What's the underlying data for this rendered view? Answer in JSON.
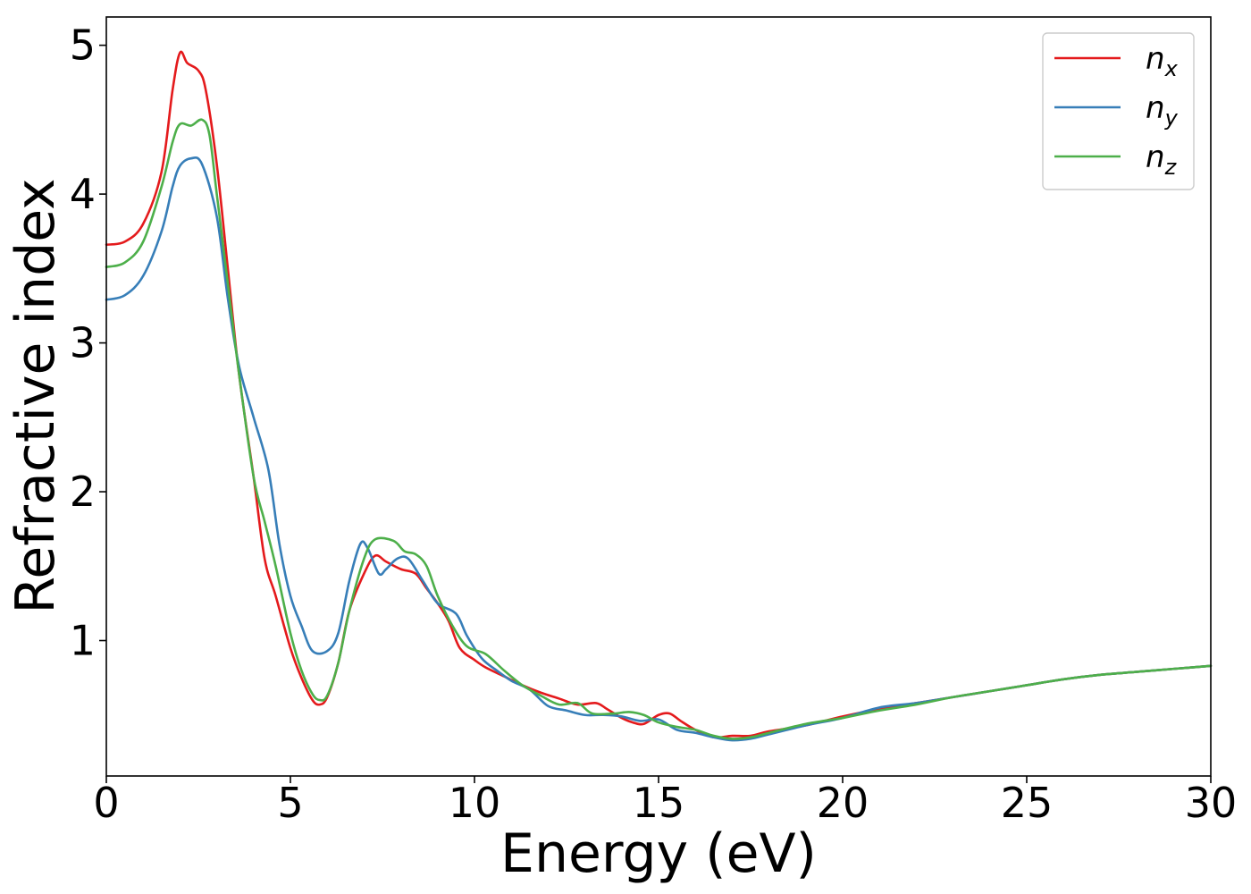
{
  "chart_data": {
    "type": "line",
    "title": "",
    "xlabel": "Energy (eV)",
    "ylabel": "Refractive index",
    "xlim": [
      0,
      30
    ],
    "ylim": [
      0.09,
      5.19
    ],
    "xticks": [
      0,
      5,
      10,
      15,
      20,
      25,
      30
    ],
    "yticks": [
      1,
      2,
      3,
      4,
      5
    ],
    "grid": false,
    "legend_position": "top-right",
    "series": [
      {
        "name": "n",
        "subscript": "x",
        "color": "#e41a1c",
        "points": [
          [
            0,
            3.66
          ],
          [
            0.5,
            3.68
          ],
          [
            1,
            3.8
          ],
          [
            1.5,
            4.15
          ],
          [
            1.8,
            4.7
          ],
          [
            2,
            4.95
          ],
          [
            2.2,
            4.88
          ],
          [
            2.5,
            4.83
          ],
          [
            2.7,
            4.7
          ],
          [
            3,
            4.2
          ],
          [
            3.3,
            3.5
          ],
          [
            3.6,
            2.8
          ],
          [
            4,
            2.1
          ],
          [
            4.3,
            1.55
          ],
          [
            4.6,
            1.3
          ],
          [
            5,
            0.95
          ],
          [
            5.3,
            0.75
          ],
          [
            5.6,
            0.6
          ],
          [
            5.8,
            0.57
          ],
          [
            6,
            0.62
          ],
          [
            6.3,
            0.85
          ],
          [
            6.6,
            1.2
          ],
          [
            7,
            1.45
          ],
          [
            7.3,
            1.57
          ],
          [
            7.6,
            1.53
          ],
          [
            8,
            1.48
          ],
          [
            8.4,
            1.45
          ],
          [
            8.7,
            1.35
          ],
          [
            9,
            1.25
          ],
          [
            9.3,
            1.13
          ],
          [
            9.6,
            0.95
          ],
          [
            10,
            0.87
          ],
          [
            10.3,
            0.82
          ],
          [
            10.8,
            0.76
          ],
          [
            11.3,
            0.7
          ],
          [
            11.8,
            0.65
          ],
          [
            12.3,
            0.61
          ],
          [
            12.8,
            0.57
          ],
          [
            13.3,
            0.58
          ],
          [
            13.6,
            0.54
          ],
          [
            14,
            0.48
          ],
          [
            14.3,
            0.45
          ],
          [
            14.6,
            0.44
          ],
          [
            15,
            0.5
          ],
          [
            15.3,
            0.51
          ],
          [
            15.6,
            0.46
          ],
          [
            16,
            0.4
          ],
          [
            16.5,
            0.35
          ],
          [
            17,
            0.36
          ],
          [
            17.5,
            0.36
          ],
          [
            18,
            0.39
          ],
          [
            19,
            0.43
          ],
          [
            20,
            0.49
          ],
          [
            21,
            0.54
          ],
          [
            22,
            0.58
          ],
          [
            23,
            0.62
          ],
          [
            24,
            0.66
          ],
          [
            25,
            0.7
          ],
          [
            26,
            0.74
          ],
          [
            27,
            0.77
          ],
          [
            28,
            0.79
          ],
          [
            29,
            0.81
          ],
          [
            30,
            0.83
          ]
        ]
      },
      {
        "name": "n",
        "subscript": "y",
        "color": "#377eb8",
        "points": [
          [
            0,
            3.29
          ],
          [
            0.5,
            3.32
          ],
          [
            1,
            3.45
          ],
          [
            1.5,
            3.75
          ],
          [
            1.8,
            4.05
          ],
          [
            2,
            4.19
          ],
          [
            2.3,
            4.24
          ],
          [
            2.6,
            4.2
          ],
          [
            3,
            3.85
          ],
          [
            3.3,
            3.3
          ],
          [
            3.6,
            2.85
          ],
          [
            4,
            2.5
          ],
          [
            4.4,
            2.15
          ],
          [
            4.7,
            1.65
          ],
          [
            5,
            1.3
          ],
          [
            5.3,
            1.1
          ],
          [
            5.6,
            0.93
          ],
          [
            6,
            0.93
          ],
          [
            6.3,
            1.05
          ],
          [
            6.6,
            1.4
          ],
          [
            6.9,
            1.65
          ],
          [
            7.1,
            1.62
          ],
          [
            7.4,
            1.45
          ],
          [
            7.6,
            1.48
          ],
          [
            7.9,
            1.55
          ],
          [
            8.2,
            1.55
          ],
          [
            8.6,
            1.4
          ],
          [
            9,
            1.25
          ],
          [
            9.5,
            1.18
          ],
          [
            9.8,
            1.03
          ],
          [
            10.2,
            0.88
          ],
          [
            10.6,
            0.8
          ],
          [
            11,
            0.73
          ],
          [
            11.5,
            0.67
          ],
          [
            12,
            0.56
          ],
          [
            12.5,
            0.53
          ],
          [
            13,
            0.5
          ],
          [
            13.5,
            0.5
          ],
          [
            14,
            0.49
          ],
          [
            14.5,
            0.46
          ],
          [
            15,
            0.47
          ],
          [
            15.5,
            0.4
          ],
          [
            16,
            0.38
          ],
          [
            16.5,
            0.35
          ],
          [
            17,
            0.33
          ],
          [
            17.5,
            0.34
          ],
          [
            18,
            0.37
          ],
          [
            19,
            0.43
          ],
          [
            20,
            0.48
          ],
          [
            21,
            0.55
          ],
          [
            22,
            0.58
          ],
          [
            23,
            0.62
          ],
          [
            24,
            0.66
          ],
          [
            25,
            0.7
          ],
          [
            26,
            0.74
          ],
          [
            27,
            0.77
          ],
          [
            28,
            0.79
          ],
          [
            29,
            0.81
          ],
          [
            30,
            0.83
          ]
        ]
      },
      {
        "name": "n",
        "subscript": "z",
        "color": "#4daf4a",
        "points": [
          [
            0,
            3.51
          ],
          [
            0.5,
            3.54
          ],
          [
            1,
            3.68
          ],
          [
            1.5,
            4.05
          ],
          [
            1.8,
            4.35
          ],
          [
            2,
            4.47
          ],
          [
            2.3,
            4.46
          ],
          [
            2.6,
            4.5
          ],
          [
            2.8,
            4.4
          ],
          [
            3,
            4.0
          ],
          [
            3.3,
            3.4
          ],
          [
            3.6,
            2.8
          ],
          [
            4,
            2.1
          ],
          [
            4.3,
            1.8
          ],
          [
            4.6,
            1.5
          ],
          [
            5,
            1.05
          ],
          [
            5.3,
            0.8
          ],
          [
            5.6,
            0.64
          ],
          [
            5.8,
            0.6
          ],
          [
            6,
            0.63
          ],
          [
            6.3,
            0.85
          ],
          [
            6.6,
            1.2
          ],
          [
            7,
            1.55
          ],
          [
            7.3,
            1.68
          ],
          [
            7.8,
            1.67
          ],
          [
            8.1,
            1.6
          ],
          [
            8.4,
            1.58
          ],
          [
            8.7,
            1.5
          ],
          [
            9,
            1.3
          ],
          [
            9.4,
            1.1
          ],
          [
            9.8,
            0.96
          ],
          [
            10.3,
            0.91
          ],
          [
            10.8,
            0.8
          ],
          [
            11.3,
            0.7
          ],
          [
            11.8,
            0.63
          ],
          [
            12.3,
            0.57
          ],
          [
            12.8,
            0.58
          ],
          [
            13.2,
            0.51
          ],
          [
            13.8,
            0.51
          ],
          [
            14.2,
            0.52
          ],
          [
            14.6,
            0.5
          ],
          [
            15,
            0.45
          ],
          [
            15.5,
            0.42
          ],
          [
            16,
            0.4
          ],
          [
            16.5,
            0.36
          ],
          [
            17,
            0.34
          ],
          [
            17.5,
            0.35
          ],
          [
            18,
            0.38
          ],
          [
            19,
            0.44
          ],
          [
            20,
            0.48
          ],
          [
            21,
            0.53
          ],
          [
            22,
            0.57
          ],
          [
            23,
            0.62
          ],
          [
            24,
            0.66
          ],
          [
            25,
            0.7
          ],
          [
            26,
            0.74
          ],
          [
            27,
            0.77
          ],
          [
            28,
            0.79
          ],
          [
            29,
            0.81
          ],
          [
            30,
            0.83
          ]
        ]
      }
    ]
  }
}
